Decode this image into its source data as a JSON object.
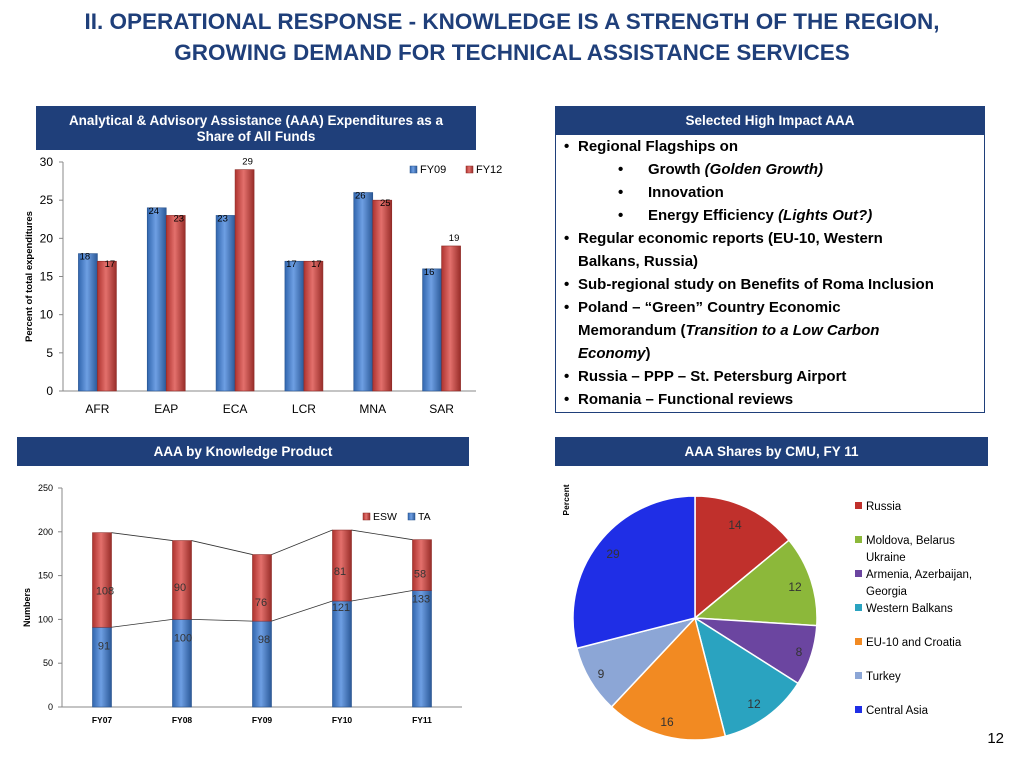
{
  "title": {
    "line1": "II.    OPERATIONAL RESPONSE - KNOWLEDGE IS A STRENGTH OF THE REGION,",
    "line2": "GROWING DEMAND FOR TECHNICAL ASSISTANCE SERVICES"
  },
  "panels": {
    "aaa_expenditures_title_line1": "Analytical & Advisory Assistance (AAA) Expenditures as a",
    "aaa_expenditures_title_line2": "Share of All Funds",
    "high_impact_title": "Selected High Impact AAA",
    "knowledge_product_title": "AAA by Knowledge Product",
    "cmu_shares_title": "AAA Shares by CMU, FY 11"
  },
  "high_impact": {
    "b1": "Regional Flagships on",
    "s1a": "Growth ",
    "s1a_em": "(Golden Growth)",
    "s1b": "Innovation",
    "s1c": "Energy Efficiency ",
    "s1c_em": "(Lights Out?)",
    "b2_line1": "Regular economic reports (EU-10, Western",
    "b2_line2": "Balkans, Russia)",
    "b3": "Sub-regional study on Benefits of Roma Inclusion",
    "b4_line1": "Poland – “Green” Country Economic",
    "b4_line2a": "Memorandum (",
    "b4_line2_em": "Transition to a Low Carbon",
    "b4_line3_em": "Economy",
    "b4_line3b": ")",
    "b5": "Russia – PPP – St. Petersburg Airport",
    "b6": "Romania – Functional reviews",
    "bullet_glyph": "•"
  },
  "page_number": "12",
  "chart_data": [
    {
      "id": "aaa-share",
      "type": "bar",
      "ylabel": "Percent of total expenditures",
      "categories": [
        "AFR",
        "EAP",
        "ECA",
        "LCR",
        "MNA",
        "SAR"
      ],
      "series": [
        {
          "name": "FY09",
          "values": [
            18,
            24,
            23,
            17,
            26,
            16
          ],
          "color": "#3d7fd9"
        },
        {
          "name": "FY12",
          "values": [
            17,
            23,
            29,
            17,
            25,
            19
          ],
          "color": "#d9403b"
        }
      ],
      "ylim": [
        0,
        30
      ],
      "yticks": [
        0,
        5,
        10,
        15,
        20,
        25,
        30
      ],
      "legend": "top-right"
    },
    {
      "id": "knowledge-product",
      "type": "bar",
      "stacked": true,
      "ylabel": "Numbers",
      "categories": [
        "FY07",
        "FY08",
        "FY09",
        "FY10",
        "FY11"
      ],
      "series": [
        {
          "name": "TA",
          "values": [
            91,
            100,
            98,
            121,
            133
          ],
          "color": "#3d7fd9"
        },
        {
          "name": "ESW",
          "values": [
            108,
            90,
            76,
            81,
            58
          ],
          "color": "#d9403b"
        }
      ],
      "ylim": [
        0,
        250
      ],
      "yticks": [
        0,
        50,
        100,
        150,
        200,
        250
      ],
      "legend": "top"
    },
    {
      "id": "cmu-shares",
      "type": "pie",
      "ylabel": "Percent",
      "labels": [
        "Russia",
        "Moldova, Belarus Ukraine",
        "Armenia, Azerbaijan, Georgia",
        "Western Balkans",
        "EU-10 and Croatia",
        "Turkey",
        "Central Asia"
      ],
      "legend_lines": [
        [
          "Russia"
        ],
        [
          "Moldova, Belarus",
          "Ukraine"
        ],
        [
          "Armenia, Azerbaijan,",
          "Georgia"
        ],
        [
          "Western Balkans"
        ],
        [
          "EU-10 and Croatia"
        ],
        [
          "Turkey"
        ],
        [
          "Central Asia"
        ]
      ],
      "values": [
        14,
        12,
        8,
        12,
        16,
        9,
        29
      ],
      "colors": [
        "#c0302c",
        "#8cb83a",
        "#6b45a0",
        "#2aa3c0",
        "#f28a22",
        "#8ca6d6",
        "#1f2ee6"
      ],
      "legend": "right"
    }
  ]
}
